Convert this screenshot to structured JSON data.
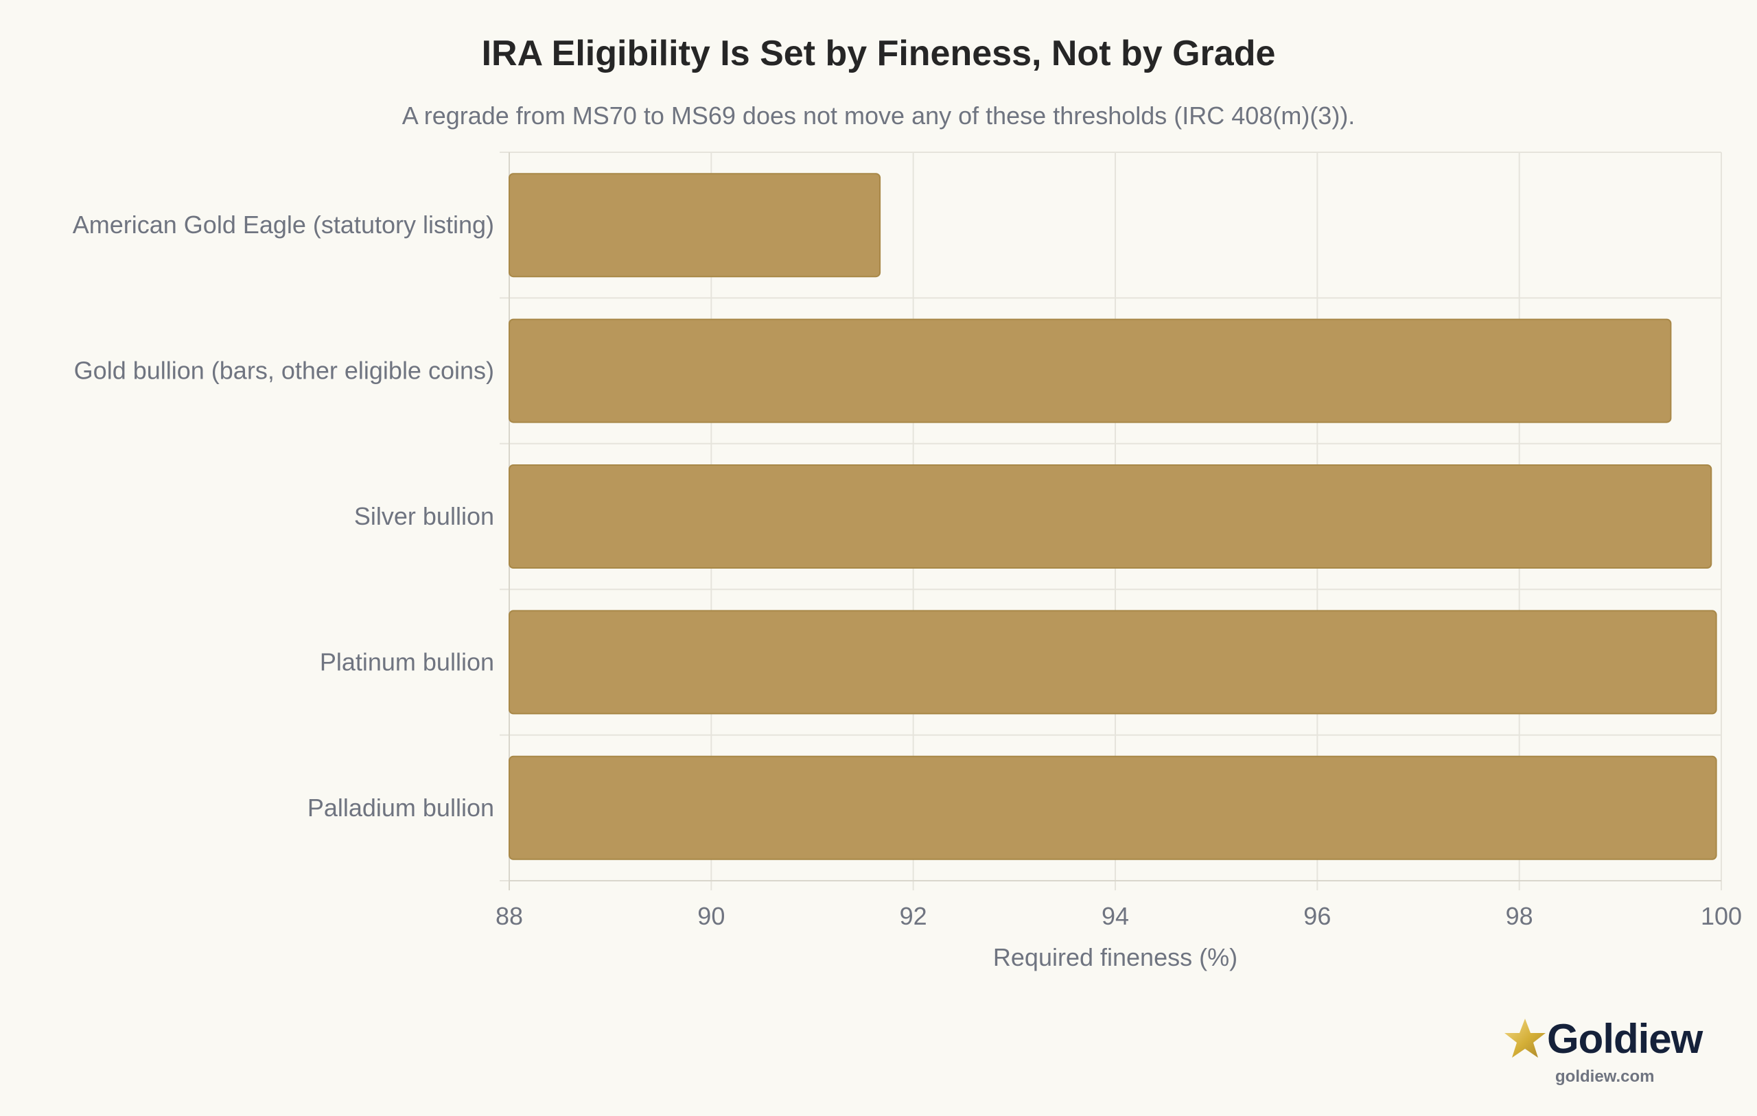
{
  "title": "IRA Eligibility Is Set by Fineness, Not by Grade",
  "subtitle": "A regrade from MS70 to MS69 does not move any of these thresholds (IRC 408(m)(3)).",
  "brand": {
    "name": "Goldiew",
    "url": "goldiew.com",
    "icon": "star-icon"
  },
  "colors": {
    "bar": "#b8975b",
    "bar_stroke": "#a88848",
    "grid": "#e6e4dc",
    "text": "#6f7480",
    "title": "#262626",
    "brand": "#15213a",
    "star": "#d4af37"
  },
  "chart_data": {
    "type": "bar",
    "orientation": "horizontal",
    "title": "IRA Eligibility Is Set by Fineness, Not by Grade",
    "subtitle": "A regrade from MS70 to MS69 does not move any of these thresholds (IRC 408(m)(3)).",
    "categories": [
      "American Gold Eagle (statutory listing)",
      "Gold bullion (bars, other eligible coins)",
      "Silver bullion",
      "Platinum bullion",
      "Palladium bullion"
    ],
    "values": [
      91.67,
      99.5,
      99.9,
      99.95,
      99.95
    ],
    "xlabel": "Required fineness (%)",
    "ylabel": "",
    "xlim": [
      88,
      100
    ],
    "xticks": [
      88,
      90,
      92,
      94,
      96,
      98,
      100
    ],
    "grid": true,
    "legend": "none"
  }
}
